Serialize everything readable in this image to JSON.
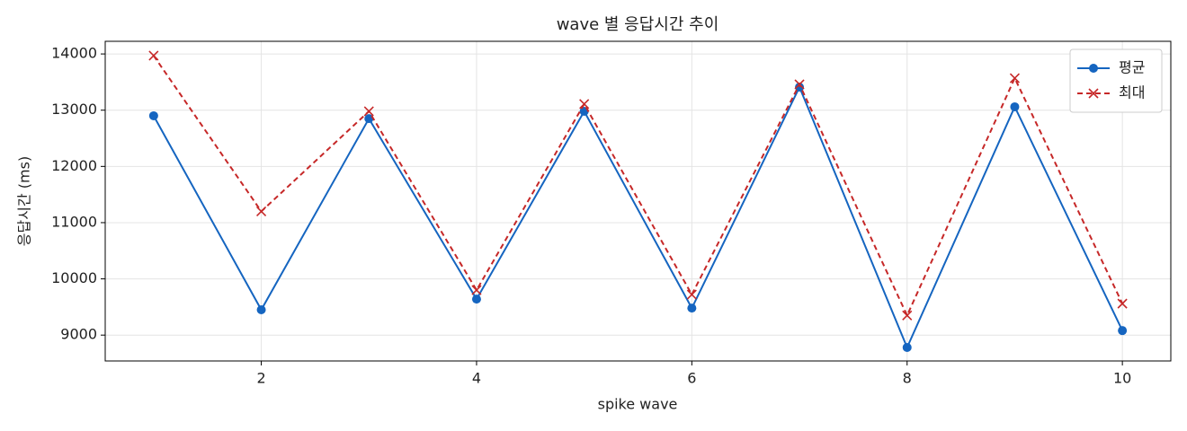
{
  "chart_data": {
    "type": "line",
    "title": "wave 별 응답시간 추이",
    "x_label": "spike wave",
    "y_label": "응답시간 (ms)",
    "x": [
      1,
      2,
      3,
      4,
      5,
      6,
      7,
      8,
      9,
      10
    ],
    "series": [
      {
        "name": "평균",
        "color": "#1565c0",
        "marker": "o",
        "dash": "solid",
        "values": [
          12900,
          9450,
          12850,
          9640,
          12980,
          9480,
          13410,
          8780,
          13060,
          9080
        ]
      },
      {
        "name": "최대",
        "color": "#c62828",
        "marker": "x",
        "dash": "dashed",
        "values": [
          13970,
          11200,
          12980,
          9800,
          13110,
          9720,
          13460,
          9350,
          13570,
          9560
        ]
      }
    ],
    "xlim": [
      0.55,
      10.45
    ],
    "xticks": [
      2,
      4,
      6,
      8,
      10
    ],
    "ylim": [
      8540,
      14225
    ],
    "yticks": [
      9000,
      10000,
      11000,
      12000,
      13000,
      14000
    ],
    "grid": true,
    "legend": "upper right"
  }
}
